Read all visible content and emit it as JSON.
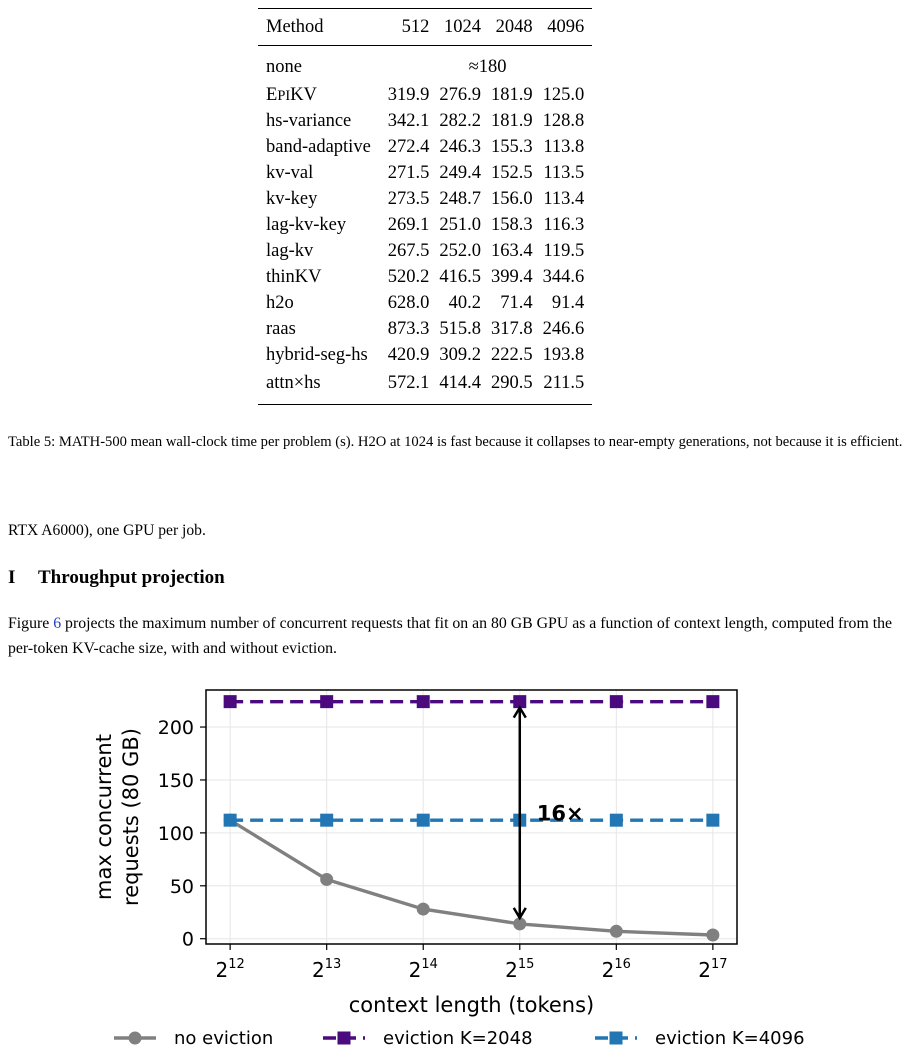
{
  "table": {
    "headers": [
      "Method",
      "512",
      "1024",
      "2048",
      "4096"
    ],
    "merged_row": {
      "method": "none",
      "value": "≈180"
    },
    "rows": [
      {
        "method": "EPIKV",
        "v": [
          "319.9",
          "276.9",
          "181.9",
          "125.0"
        ]
      },
      {
        "method": "hs-variance",
        "v": [
          "342.1",
          "282.2",
          "181.9",
          "128.8"
        ]
      },
      {
        "method": "band-adaptive",
        "v": [
          "272.4",
          "246.3",
          "155.3",
          "113.8"
        ]
      },
      {
        "method": "kv-val",
        "v": [
          "271.5",
          "249.4",
          "152.5",
          "113.5"
        ]
      },
      {
        "method": "kv-key",
        "v": [
          "273.5",
          "248.7",
          "156.0",
          "113.4"
        ]
      },
      {
        "method": "lag-kv-key",
        "v": [
          "269.1",
          "251.0",
          "158.3",
          "116.3"
        ]
      },
      {
        "method": "lag-kv",
        "v": [
          "267.5",
          "252.0",
          "163.4",
          "119.5"
        ]
      },
      {
        "method": "thinKV",
        "v": [
          "520.2",
          "416.5",
          "399.4",
          "344.6"
        ]
      },
      {
        "method": "h2o",
        "v": [
          "628.0",
          "40.2",
          "71.4",
          "91.4"
        ]
      },
      {
        "method": "raas",
        "v": [
          "873.3",
          "515.8",
          "317.8",
          "246.6"
        ]
      },
      {
        "method": "hybrid-seg-hs",
        "v": [
          "420.9",
          "309.2",
          "222.5",
          "193.8"
        ]
      },
      {
        "method": "attn×hs",
        "v": [
          "572.1",
          "414.4",
          "290.5",
          "211.5"
        ]
      }
    ]
  },
  "caption": "Table 5: MATH-500 mean wall-clock time per problem (s). H2O at 1024 is fast because it collapses to near-empty generations, not because it is efficient.",
  "body_line": "RTX A6000), one GPU per job.",
  "section": {
    "number": "I",
    "title": "Throughput projection"
  },
  "paragraph": {
    "before": "Figure ",
    "ref": "6",
    "after": " projects the maximum number of concurrent requests that fit on an 80 GB GPU as a function of context length, computed from the per-token KV-cache size, with and without eviction."
  },
  "chart_data": {
    "type": "line",
    "x_label": "context length (tokens)",
    "y_label_lines": [
      "max concurrent",
      "requests (80 GB)"
    ],
    "x_exponents": [
      12,
      13,
      14,
      15,
      16,
      17
    ],
    "x_tick_base": "2",
    "y_ticks": [
      0,
      50,
      100,
      150,
      200
    ],
    "ylim": [
      -5,
      235
    ],
    "grid": true,
    "legend_position": "bottom",
    "series": [
      {
        "name": "no eviction",
        "color": "#808080",
        "marker": "circle",
        "dashed": false,
        "values": [
          112,
          56,
          28,
          14,
          7,
          3.5
        ]
      },
      {
        "name": "eviction K=2048",
        "color": "#4b0a7d",
        "marker": "square",
        "dashed": true,
        "values": [
          224,
          224,
          224,
          224,
          224,
          224
        ]
      },
      {
        "name": "eviction K=4096",
        "color": "#2276b4",
        "marker": "square",
        "dashed": true,
        "values": [
          112,
          112,
          112,
          112,
          112,
          112
        ]
      }
    ],
    "annotation": {
      "text": "16×",
      "at_exponent": 15,
      "from": 14,
      "to": 224
    }
  }
}
